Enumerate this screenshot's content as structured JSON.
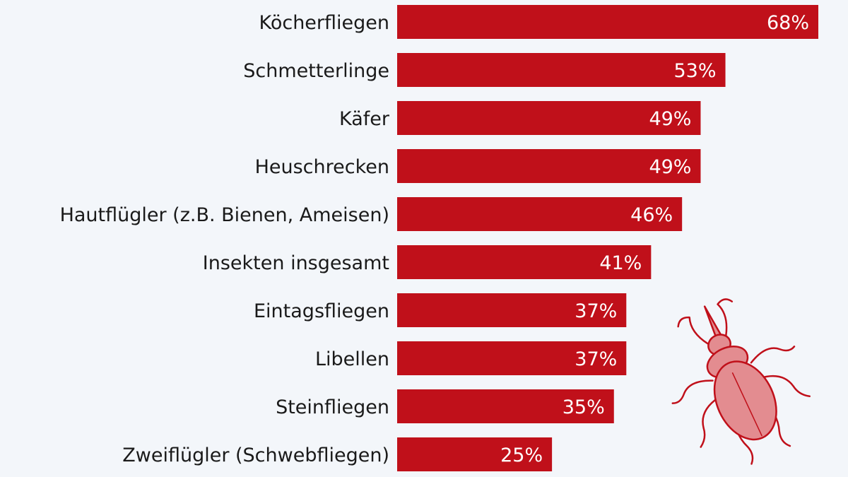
{
  "chart_data": {
    "type": "bar",
    "orientation": "horizontal",
    "categories": [
      "Köcherfliegen",
      "Schmetterlinge",
      "Käfer",
      "Heuschrecken",
      "Hautflügler (z.B. Bienen, Ameisen)",
      "Insekten insgesamt",
      "Eintagsfliegen",
      "Libellen",
      "Steinfliegen",
      "Zweiflügler (Schwebfliegen)"
    ],
    "values": [
      68,
      53,
      49,
      49,
      46,
      41,
      37,
      37,
      35,
      25
    ],
    "value_labels": [
      "68%",
      "53%",
      "49%",
      "49%",
      "46%",
      "41%",
      "37%",
      "37%",
      "35%",
      "25%"
    ],
    "unit": "%",
    "xlim": [
      0,
      68
    ],
    "grid": false,
    "legend": "none",
    "bar_color": "#c0101a",
    "value_label_color": "#ffffff",
    "background_color": "#f3f6fa",
    "decoration": "beetle-illustration"
  }
}
